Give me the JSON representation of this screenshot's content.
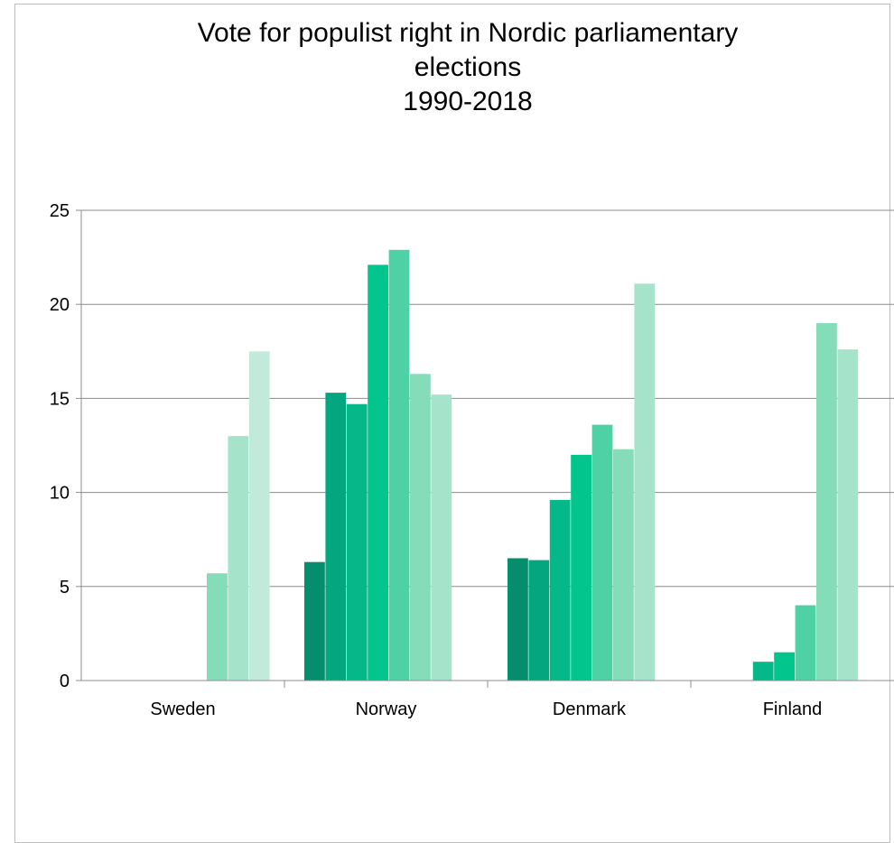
{
  "chart_data": {
    "type": "bar",
    "title_lines": [
      "Vote for populist right in Nordic parliamentary",
      "elections",
      "1990-2018"
    ],
    "xlabel": "",
    "ylabel": "",
    "ylim": [
      0,
      25
    ],
    "yticks": [
      "0",
      "5",
      "10",
      "15",
      "20",
      "25"
    ],
    "grid": true,
    "legend": "none",
    "categories": [
      "Sweden",
      "Norway",
      "Denmark",
      "Finland"
    ],
    "groups": [
      {
        "category": "Sweden",
        "values": [
          null,
          null,
          null,
          null,
          null,
          5.7,
          13.0,
          17.5,
          null
        ]
      },
      {
        "category": "Norway",
        "values": [
          6.3,
          15.3,
          14.7,
          22.1,
          22.9,
          16.3,
          15.2,
          null,
          null
        ]
      },
      {
        "category": "Denmark",
        "values": [
          6.5,
          6.4,
          9.6,
          12.0,
          13.6,
          12.3,
          21.1,
          null,
          null
        ]
      },
      {
        "category": "Finland",
        "values": [
          null,
          null,
          1.0,
          1.5,
          4.0,
          19.0,
          17.6,
          null,
          null
        ]
      }
    ],
    "bar_colors": [
      "#058e6e",
      "#03a67f",
      "#04b889",
      "#02c58e",
      "#4ed2a5",
      "#84dcb9",
      "#a6e3cb",
      "#c2eadb",
      "#d7f1e6"
    ]
  }
}
